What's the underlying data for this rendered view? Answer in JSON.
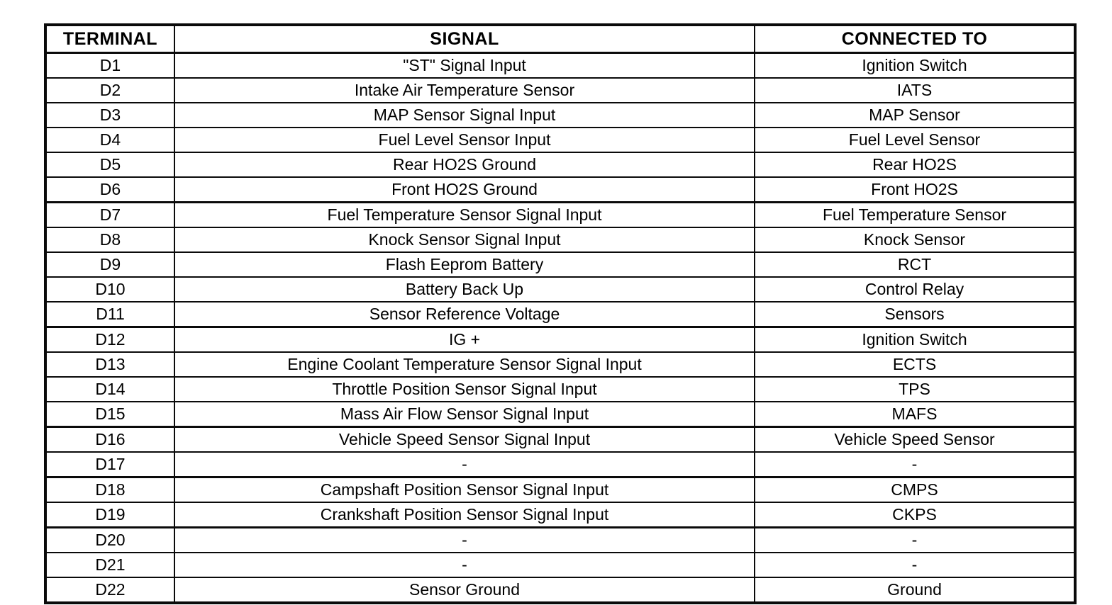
{
  "page": {
    "background_color": "#ffffff",
    "ink_color": "#0a0a0a"
  },
  "table": {
    "columns": [
      "TERMINAL",
      "SIGNAL",
      "CONNECTED TO"
    ],
    "rows": [
      {
        "terminal": "D1",
        "signal": "\"ST\" Signal Input",
        "connected_to": "Ignition Switch"
      },
      {
        "terminal": "D2",
        "signal": "Intake Air Temperature Sensor",
        "connected_to": "IATS"
      },
      {
        "terminal": "D3",
        "signal": "MAP Sensor Signal Input",
        "connected_to": "MAP Sensor"
      },
      {
        "terminal": "D4",
        "signal": "Fuel Level Sensor Input",
        "connected_to": "Fuel Level Sensor"
      },
      {
        "terminal": "D5",
        "signal": "Rear HO2S Ground",
        "connected_to": "Rear HO2S"
      },
      {
        "terminal": "D6",
        "signal": "Front HO2S Ground",
        "connected_to": "Front HO2S"
      },
      {
        "terminal": "D7",
        "signal": "Fuel Temperature Sensor Signal Input",
        "connected_to": "Fuel Temperature Sensor"
      },
      {
        "terminal": "D8",
        "signal": "Knock Sensor Signal Input",
        "connected_to": "Knock Sensor"
      },
      {
        "terminal": "D9",
        "signal": "Flash Eeprom Battery",
        "connected_to": "RCT"
      },
      {
        "terminal": "D10",
        "signal": "Battery Back Up",
        "connected_to": "Control Relay"
      },
      {
        "terminal": "D11",
        "signal": "Sensor Reference Voltage",
        "connected_to": "Sensors"
      },
      {
        "terminal": "D12",
        "signal": "IG +",
        "connected_to": "Ignition Switch"
      },
      {
        "terminal": "D13",
        "signal": "Engine Coolant Temperature Sensor Signal Input",
        "connected_to": "ECTS"
      },
      {
        "terminal": "D14",
        "signal": "Throttle Position Sensor Signal Input",
        "connected_to": "TPS"
      },
      {
        "terminal": "D15",
        "signal": "Mass Air Flow Sensor Signal Input",
        "connected_to": "MAFS"
      },
      {
        "terminal": "D16",
        "signal": "Vehicle Speed Sensor Signal Input",
        "connected_to": "Vehicle Speed Sensor"
      },
      {
        "terminal": "D17",
        "signal": "-",
        "connected_to": "-"
      },
      {
        "terminal": "D18",
        "signal": "Campshaft Position Sensor Signal Input",
        "connected_to": "CMPS"
      },
      {
        "terminal": "D19",
        "signal": "Crankshaft Position Sensor Signal Input",
        "connected_to": "CKPS"
      },
      {
        "terminal": "D20",
        "signal": "-",
        "connected_to": "-"
      },
      {
        "terminal": "D21",
        "signal": "-",
        "connected_to": "-"
      },
      {
        "terminal": "D22",
        "signal": "Sensor Ground",
        "connected_to": "Ground"
      }
    ]
  }
}
